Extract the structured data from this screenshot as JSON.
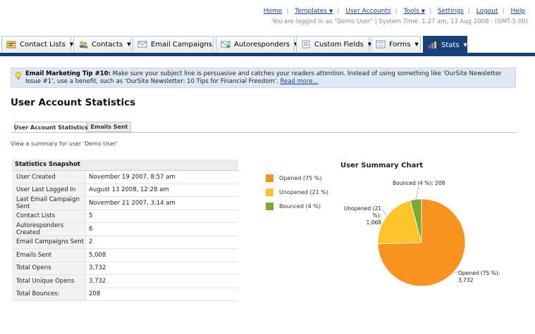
{
  "toplinks": {
    "home": "Home",
    "templates": "Templates",
    "user_accounts": "User Accounts",
    "tools": "Tools",
    "settings": "Settings",
    "logout": "Logout",
    "help": "Help"
  },
  "status_text": "You are logged in as \"Demo User\" | System Time: 1:27 am, 13 Aug 2008 - (GMT-5:00)",
  "nav_tabs": [
    {
      "label": "Contact Lists",
      "icon": "contact-lists-icon"
    },
    {
      "label": "Contacts",
      "icon": "contacts-icon"
    },
    {
      "label": "Email Campaigns",
      "icon": "email-icon"
    },
    {
      "label": "Autoresponders",
      "icon": "autoresponder-icon"
    },
    {
      "label": "Custom Fields",
      "icon": "custom-fields-icon"
    },
    {
      "label": "Forms",
      "icon": "forms-icon"
    },
    {
      "label": "Stats",
      "icon": "stats-icon",
      "active": true
    }
  ],
  "tip": {
    "heading": "Email Marketing Tip #10:",
    "text": "Make sure your subject line is persuasive and catches your readers attention. Instead of using something like 'OurSite Newsletter Issue #1', use a benefit, such as 'OurSite Newsletter: 10 Tips for Financial Freedom'.",
    "link": "Read more..."
  },
  "page_title": "User Account Statistics",
  "sub_tabs": [
    "User Account Statistics",
    "Emails Sent"
  ],
  "summary_text": "View a summary for user 'Demo User'",
  "snapshot": {
    "heading": "Statistics Snapshot",
    "rows": [
      {
        "label": "User Created",
        "value": "November 19 2007, 8:57 am"
      },
      {
        "label": "User Last Logged In",
        "value": "August 13 2008, 12:28 am"
      },
      {
        "label": "Last Email Campaign Sent",
        "value": "November 21 2007, 3:14 am"
      },
      {
        "label": "Contact Lists",
        "value": "5"
      },
      {
        "label": "Autoresponders Created",
        "value": "6"
      },
      {
        "label": "Email Campaigns Sent",
        "value": "2"
      },
      {
        "label": "Emails Sent",
        "value": "5,008"
      },
      {
        "label": "Total Opens",
        "value": "3,732"
      },
      {
        "label": "Total Unique Opens",
        "value": "3,732"
      },
      {
        "label": "Total Bounces:",
        "value": "208"
      }
    ]
  },
  "colors": {
    "opened": "#f7931e",
    "unopened": "#fcc42a",
    "bounced": "#7aab2a",
    "nav": "#173f78"
  },
  "chart_data": {
    "type": "pie",
    "title": "User Summary Chart",
    "legend": [
      "Opened (75 %)",
      "Unopened (21 %)",
      "Bounced (4 %)"
    ],
    "slices": [
      {
        "name": "Opened",
        "value": 3732,
        "percent": 75,
        "label": "Opened (75 %):",
        "value_label": "3,732"
      },
      {
        "name": "Unopened",
        "value": 1068,
        "percent": 21,
        "label": "Unopened (21 %):",
        "value_label": "1,068"
      },
      {
        "name": "Bounced",
        "value": 208,
        "percent": 4,
        "label": "Bounced (4 %): 208",
        "value_label": ""
      }
    ]
  }
}
